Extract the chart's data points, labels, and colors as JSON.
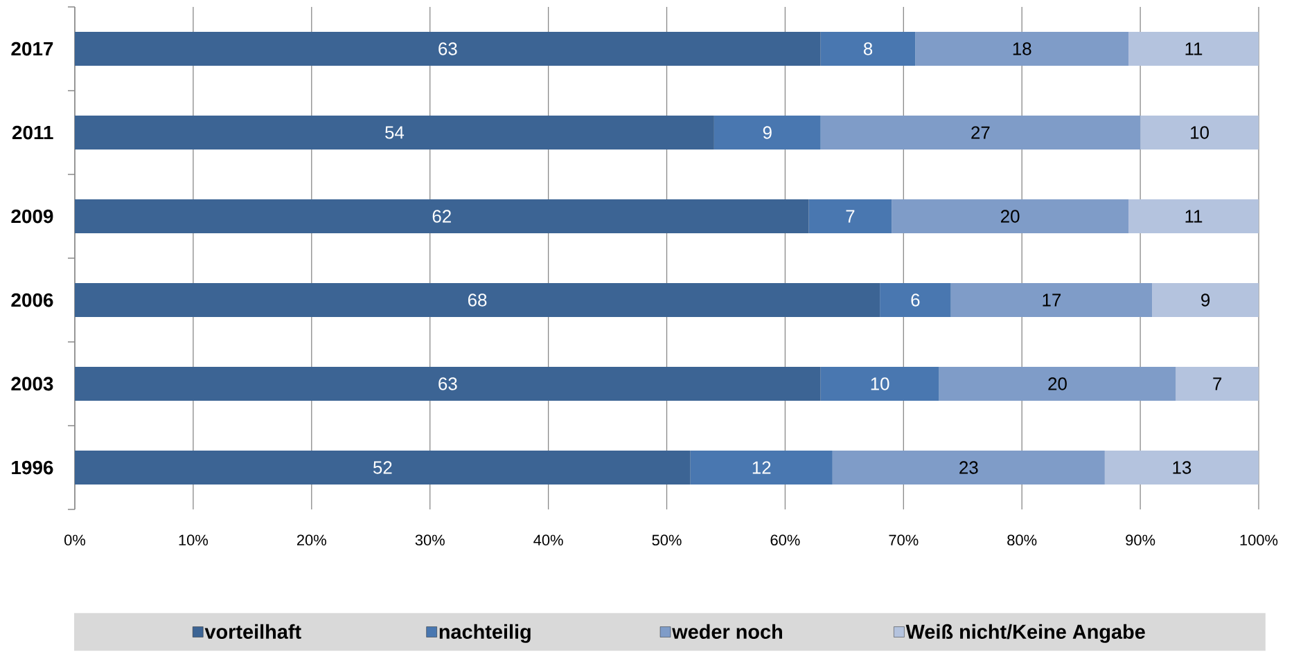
{
  "chart_data": {
    "type": "bar",
    "orientation": "horizontal",
    "stacked": true,
    "categories": [
      "2017",
      "2011",
      "2009",
      "2006",
      "2003",
      "1996"
    ],
    "series": [
      {
        "name": "vorteilhaft",
        "color": "#3c6494",
        "values": [
          63,
          54,
          62,
          68,
          63,
          52
        ]
      },
      {
        "name": "nachteilig",
        "color": "#4977b0",
        "values": [
          8,
          9,
          7,
          6,
          10,
          12
        ]
      },
      {
        "name": "weder noch",
        "color": "#7f9cc8",
        "values": [
          18,
          27,
          20,
          17,
          20,
          23
        ]
      },
      {
        "name": "Weiß nicht/Keine Angabe",
        "color": "#b4c3de",
        "values": [
          11,
          10,
          11,
          9,
          7,
          13
        ]
      }
    ],
    "xlim": [
      0,
      100
    ],
    "xticks": [
      {
        "value": 0,
        "label": "0%"
      },
      {
        "value": 10,
        "label": "10%"
      },
      {
        "value": 20,
        "label": "20%"
      },
      {
        "value": 30,
        "label": "30%"
      },
      {
        "value": 40,
        "label": "40%"
      },
      {
        "value": 50,
        "label": "50%"
      },
      {
        "value": 60,
        "label": "60%"
      },
      {
        "value": 70,
        "label": "70%"
      },
      {
        "value": 80,
        "label": "80%"
      },
      {
        "value": 90,
        "label": "90%"
      },
      {
        "value": 100,
        "label": "100%"
      }
    ],
    "grid": "x",
    "legend": "bottom",
    "data_labels": true
  }
}
